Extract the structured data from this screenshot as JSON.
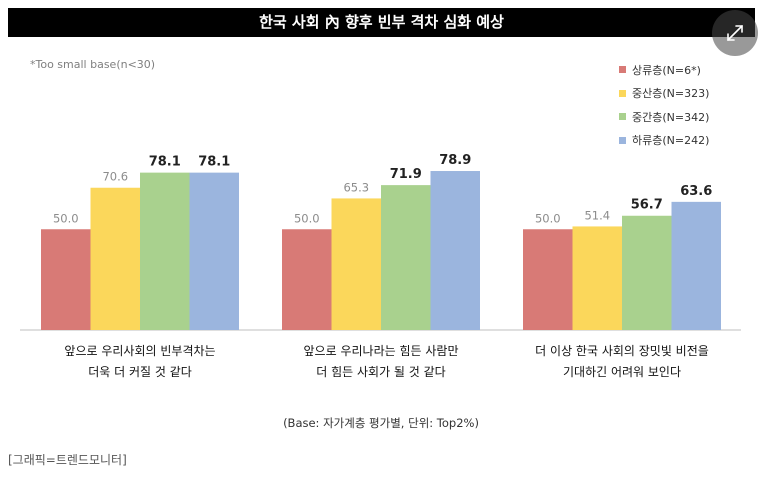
{
  "title": "한국 사회 內 향후 빈부 격차 심화 예상",
  "note": "*Too small base(n<30)",
  "source": "(Base: 자가계층 평가별, 단위: Top2%)",
  "credit": "[그래픽=트렌드모니터]",
  "icons": {
    "expand": "expand-arrows-icon"
  },
  "colors": {
    "title_bg": "#000000",
    "axis": "#bfbfbf"
  },
  "chart_data": {
    "type": "bar",
    "categories": [
      [
        "앞으로 우리사회의 빈부격차는",
        "더욱 더 커질 것 같다"
      ],
      [
        "앞으로 우리나라는 힘든 사람만",
        "더 힘든 사회가 될 것 같다"
      ],
      [
        "더 이상 한국 사회의 장밋빛 비전을",
        "기대하긴 어려워 보인다"
      ]
    ],
    "series": [
      {
        "name": "상류층(N=6*)",
        "color": "#d87a76",
        "values": [
          50.0,
          50.0,
          50.0
        ],
        "labels": [
          "50.0",
          "50.0",
          "50.0"
        ]
      },
      {
        "name": "중산층(N=323)",
        "color": "#fbd75b",
        "values": [
          70.6,
          65.3,
          51.4
        ],
        "labels": [
          "70.6",
          "65.3",
          "51.4"
        ]
      },
      {
        "name": "중간층(N=342)",
        "color": "#a9d18e",
        "values": [
          78.1,
          71.9,
          56.7
        ],
        "labels": [
          "78.1",
          "71.9",
          "56.7"
        ]
      },
      {
        "name": "하류층(N=242)",
        "color": "#9bb5de",
        "values": [
          78.1,
          78.9,
          63.6
        ],
        "labels": [
          "78.1",
          "78.9",
          "63.6"
        ]
      }
    ],
    "highlighted_series": [
      2,
      3
    ],
    "ylim": [
      0,
      100
    ],
    "legend_position": "top-right",
    "grid": false
  }
}
